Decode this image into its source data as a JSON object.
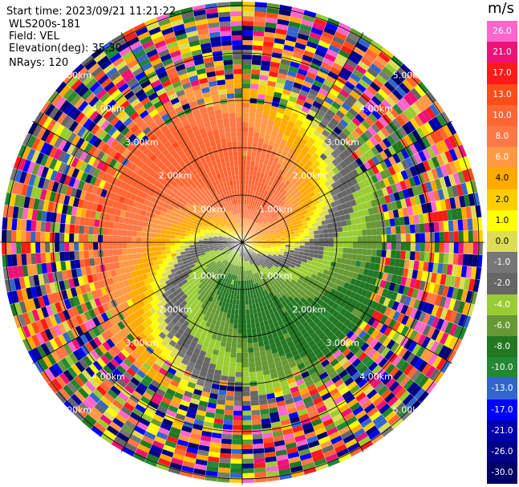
{
  "header": {
    "start_time": "Start time: 2023/09/21 11:21:22",
    "instrument": "WLS200s-181",
    "field": "Field: VEL",
    "elevation": "Elevation(deg): 35.30",
    "nrays": "NRays: 120"
  },
  "rings": {
    "labels": [
      "1.00km",
      "2.00km",
      "3.00km",
      "4.00km",
      "5.00km"
    ]
  },
  "colorbar": {
    "unit": "m/s",
    "ticks": [
      "26.0",
      "21.0",
      "17.0",
      "13.0",
      "10.0",
      "8.0",
      "6.0",
      "4.0",
      "2.0",
      "1.0",
      "0.0",
      "-1.0",
      "-2.0",
      "-4.0",
      "-6.0",
      "-8.0",
      "-10.0",
      "-13.0",
      "-17.0",
      "-21.0",
      "-26.0",
      "-30.0"
    ],
    "colors": [
      "#ff66cc",
      "#ee1177",
      "#ff1a1a",
      "#ff4d1a",
      "#ff6633",
      "#ff7744",
      "#ff9944",
      "#ffaa00",
      "#ffcc00",
      "#ffff00",
      "#dddd55",
      "#777777",
      "#666666",
      "#99cc33",
      "#669933",
      "#227722",
      "#228833",
      "#3366cc",
      "#0000ff",
      "#0000aa",
      "#000088",
      "#000066"
    ]
  }
}
